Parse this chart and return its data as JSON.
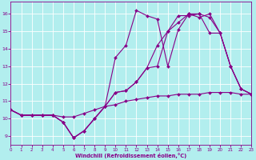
{
  "xlabel": "Windchill (Refroidissement éolien,°C)",
  "xlim": [
    0,
    23
  ],
  "ylim": [
    8.5,
    16.7
  ],
  "xticks": [
    0,
    1,
    2,
    3,
    4,
    5,
    6,
    7,
    8,
    9,
    10,
    11,
    12,
    13,
    14,
    15,
    16,
    17,
    18,
    19,
    20,
    21,
    22,
    23
  ],
  "yticks": [
    9,
    10,
    11,
    12,
    13,
    14,
    15,
    16
  ],
  "bg_color": "#b2eeee",
  "grid_color": "#ffffff",
  "line_color": "#880088",
  "line_width": 0.8,
  "marker": "D",
  "marker_size": 2.0,
  "lines": [
    [
      10.5,
      10.2,
      10.2,
      10.2,
      10.2,
      10.1,
      10.1,
      10.3,
      10.5,
      10.7,
      10.8,
      11.0,
      11.1,
      11.2,
      11.3,
      11.3,
      11.4,
      11.4,
      11.4,
      11.5,
      11.5,
      11.5,
      11.4,
      11.4
    ],
    [
      10.5,
      10.2,
      10.2,
      10.2,
      10.2,
      9.8,
      8.9,
      9.3,
      10.0,
      10.7,
      11.5,
      11.6,
      12.1,
      12.9,
      13.0,
      15.0,
      15.9,
      15.9,
      16.0,
      15.8,
      14.9,
      13.0,
      11.7,
      11.4
    ],
    [
      10.5,
      10.2,
      10.2,
      10.2,
      10.2,
      9.8,
      8.9,
      9.3,
      10.0,
      10.7,
      13.5,
      14.2,
      16.2,
      15.9,
      15.7,
      13.0,
      15.1,
      16.0,
      15.8,
      16.0,
      14.9,
      13.0,
      11.7,
      11.4
    ],
    [
      10.5,
      10.2,
      10.2,
      10.2,
      10.2,
      9.8,
      8.9,
      9.3,
      10.0,
      10.7,
      11.5,
      11.6,
      12.1,
      12.9,
      14.2,
      15.0,
      15.5,
      16.0,
      16.0,
      14.9,
      14.9,
      13.0,
      11.7,
      11.4
    ]
  ]
}
